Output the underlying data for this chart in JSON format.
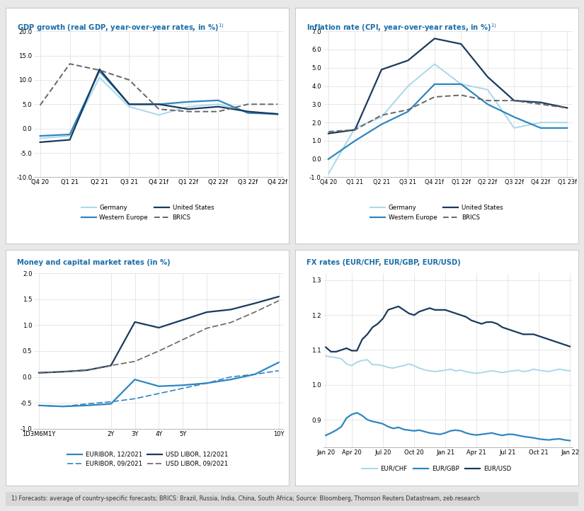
{
  "gdp": {
    "title": "GDP growth (real GDP, year-over-year rates, in %)",
    "xticks": [
      "Q4 20",
      "Q1 21",
      "Q2 21",
      "Q3 21",
      "Q4 21f",
      "Q1 22f",
      "Q2 22f",
      "Q3 22f",
      "Q4 22f"
    ],
    "ylim": [
      -10.0,
      20.0
    ],
    "yticks": [
      -10.0,
      -5.0,
      0.0,
      5.0,
      10.0,
      15.0,
      20.0
    ],
    "germany": [
      -2.0,
      -1.5,
      10.5,
      4.5,
      2.8,
      4.5,
      5.0,
      3.5,
      2.8
    ],
    "western_europe": [
      -1.5,
      -1.2,
      11.8,
      5.0,
      5.0,
      5.5,
      5.8,
      3.2,
      3.0
    ],
    "united_states": [
      -2.8,
      -2.3,
      12.2,
      5.0,
      5.0,
      4.0,
      4.5,
      3.5,
      3.0
    ],
    "brics": [
      4.8,
      13.3,
      12.0,
      10.0,
      4.0,
      3.5,
      3.5,
      5.0,
      5.0
    ]
  },
  "cpi": {
    "title": "Inflation rate (CPI, year-over-year rates, in %)",
    "xticks": [
      "Q4 20",
      "Q1 21",
      "Q2 21",
      "Q3 21",
      "Q4 21f",
      "Q1 22f",
      "Q2 22f",
      "Q3 22f",
      "Q4 22f",
      "Q1 23f"
    ],
    "ylim": [
      -1.0,
      7.0
    ],
    "yticks": [
      -1.0,
      0.0,
      1.0,
      2.0,
      3.0,
      4.0,
      5.0,
      6.0,
      7.0
    ],
    "germany": [
      -0.8,
      1.7,
      2.3,
      4.0,
      5.2,
      4.1,
      3.8,
      1.7,
      2.0,
      2.0
    ],
    "western_europe": [
      0.0,
      1.0,
      1.9,
      2.6,
      4.1,
      4.1,
      3.0,
      2.3,
      1.7,
      1.7
    ],
    "united_states": [
      1.4,
      1.6,
      4.9,
      5.4,
      6.6,
      6.3,
      4.5,
      3.2,
      3.1,
      2.8
    ],
    "brics": [
      1.5,
      1.6,
      2.4,
      2.7,
      3.4,
      3.5,
      3.2,
      3.2,
      3.0,
      2.8
    ]
  },
  "rates": {
    "title": "Money and capital market rates (in %)",
    "ylim": [
      -1.0,
      2.0
    ],
    "yticks": [
      -1.0,
      -0.5,
      0.0,
      0.5,
      1.0,
      1.5,
      2.0
    ],
    "euribor_dec": [
      -0.55,
      -0.57,
      -0.55,
      -0.52,
      -0.05,
      -0.18,
      -0.16,
      -0.12,
      -0.05,
      0.05,
      0.28
    ],
    "euribor_sep": [
      -0.55,
      -0.57,
      -0.52,
      -0.48,
      -0.42,
      -0.32,
      -0.22,
      -0.12,
      0.0,
      0.05,
      0.12
    ],
    "usd_dec": [
      0.08,
      0.1,
      0.13,
      0.22,
      1.06,
      0.95,
      1.1,
      1.25,
      1.3,
      1.42,
      1.55
    ],
    "usd_sep": [
      0.08,
      0.1,
      0.13,
      0.22,
      0.3,
      0.5,
      0.72,
      0.94,
      1.05,
      1.25,
      1.47
    ],
    "xtick_positions": [
      0,
      3,
      4,
      5,
      6,
      7,
      10
    ],
    "xtick_labels": [
      "1D3M6M1Y",
      "2Y",
      "3Y",
      "4Y",
      "5Y",
      "",
      "10Y"
    ]
  },
  "fx": {
    "title": "FX rates (EUR/CHF, EUR/GBP, EUR/USD)",
    "ylim": [
      0.82,
      1.32
    ],
    "yticks": [
      0.9,
      1.0,
      1.1,
      1.2,
      1.3
    ],
    "eur_chf": [
      1.083,
      1.08,
      1.078,
      1.075,
      1.06,
      1.055,
      1.065,
      1.07,
      1.072,
      1.058,
      1.058,
      1.055,
      1.05,
      1.048,
      1.052,
      1.055,
      1.06,
      1.055,
      1.048,
      1.043,
      1.04,
      1.038,
      1.04,
      1.042,
      1.045,
      1.04,
      1.042,
      1.038,
      1.035,
      1.033,
      1.035,
      1.038,
      1.04,
      1.038,
      1.035,
      1.038,
      1.04,
      1.042,
      1.038,
      1.04,
      1.045,
      1.042,
      1.04,
      1.038,
      1.042,
      1.045,
      1.042,
      1.04
    ],
    "eur_gbp": [
      0.855,
      0.862,
      0.87,
      0.88,
      0.905,
      0.915,
      0.92,
      0.912,
      0.9,
      0.895,
      0.892,
      0.888,
      0.88,
      0.875,
      0.878,
      0.872,
      0.87,
      0.868,
      0.87,
      0.866,
      0.862,
      0.86,
      0.858,
      0.862,
      0.868,
      0.87,
      0.868,
      0.862,
      0.858,
      0.856,
      0.858,
      0.86,
      0.862,
      0.858,
      0.855,
      0.858,
      0.858,
      0.855,
      0.852,
      0.85,
      0.848,
      0.845,
      0.843,
      0.842,
      0.844,
      0.845,
      0.842,
      0.84
    ],
    "eur_usd": [
      1.108,
      1.095,
      1.095,
      1.1,
      1.105,
      1.098,
      1.098,
      1.13,
      1.145,
      1.165,
      1.175,
      1.19,
      1.215,
      1.22,
      1.225,
      1.215,
      1.205,
      1.2,
      1.21,
      1.215,
      1.22,
      1.215,
      1.215,
      1.215,
      1.21,
      1.205,
      1.2,
      1.195,
      1.185,
      1.18,
      1.175,
      1.18,
      1.18,
      1.175,
      1.165,
      1.16,
      1.155,
      1.15,
      1.145,
      1.145,
      1.145,
      1.14,
      1.135,
      1.13,
      1.125,
      1.12,
      1.115,
      1.11
    ],
    "x_tick_labels": [
      "Jan 20",
      "Apr 20",
      "Jul 20",
      "Oct 20",
      "Jan 21",
      "Apr 21",
      "Jul 21",
      "Oct 21",
      "Jan 22"
    ],
    "n_points": 48
  },
  "colors": {
    "light_blue": "#A8D8EA",
    "mid_blue": "#2E86C1",
    "dark_blue": "#1A3A5C",
    "dark_gray": "#666666",
    "title_blue": "#1B6FA8",
    "outer_bg": "#E8E8E8",
    "panel_bg": "#FFFFFF",
    "grid_color": "#DDDDDD",
    "footnote_bg": "#D8D8D8"
  },
  "footnote": "1) Forecasts: average of country-specific forecasts; BRICS: Brazil, Russia, India, China, South Africa; Source: Bloomberg, Thomson Reuters Datastream, zeb.research"
}
